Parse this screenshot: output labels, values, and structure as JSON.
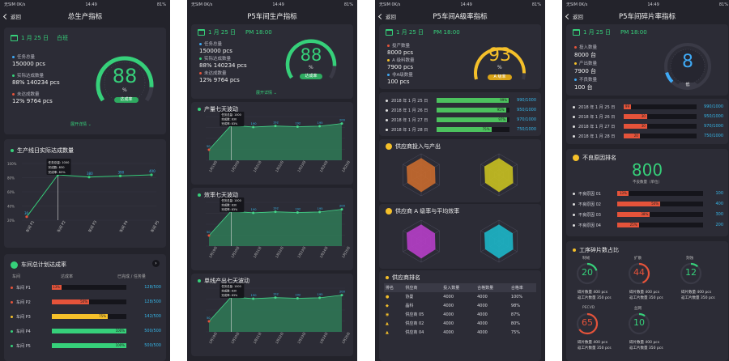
{
  "status": {
    "carrier": "无SIM 0K/s",
    "time": "14:49",
    "battery": "81%"
  },
  "nav": {
    "back": "返回"
  },
  "screen1": {
    "title": "总生产指标",
    "date": "1 月 25 日",
    "shift": "白班",
    "stats": [
      {
        "label": "任务总量",
        "value": "150000 pcs",
        "color": "#3fa9f5"
      },
      {
        "label": "实际达成数量",
        "value": "88%   140234 pcs",
        "color": "#36d07a"
      },
      {
        "label": "未达成数量",
        "value": "12%   9764 pcs",
        "color": "#e5533a"
      }
    ],
    "gauge": {
      "value": "88",
      "unit": "%",
      "badge": "达成率",
      "level": 0.88
    },
    "expand": "展开详情",
    "lineTitle": "生产线日实际达成数量",
    "line": {
      "yticks": [
        "100%",
        "80%",
        "60%",
        "40%",
        "20%"
      ],
      "categories": [
        "车间 P1",
        "车间 P2",
        "车间 P3",
        "车间 P4",
        "车间 P5"
      ],
      "values": [
        30,
        400,
        380,
        390,
        400
      ],
      "labels": [
        "30",
        "",
        "380",
        "390",
        "400"
      ],
      "tooltip": [
        "任务总量: 1000",
        "完成数: 830",
        "完成率: 83%"
      ]
    },
    "planTitle": "车间总计划达成率",
    "planHeader": [
      "车间",
      "达成率",
      "已完成 / 任务量"
    ],
    "plan": [
      {
        "name": "车间 P1",
        "pct": "13%",
        "frac": 0.13,
        "val": "128/500",
        "color": "#e5533a"
      },
      {
        "name": "车间 P2",
        "pct": "50%",
        "frac": 0.5,
        "val": "128/500",
        "color": "#e5533a"
      },
      {
        "name": "车间 P3",
        "pct": "75%",
        "frac": 0.75,
        "val": "142/500",
        "color": "#f5c02a"
      },
      {
        "name": "车间 P4",
        "pct": "100%",
        "frac": 1.0,
        "val": "500/500",
        "color": "#36d07a"
      },
      {
        "name": "车间 P5",
        "pct": "100%",
        "frac": 1.0,
        "val": "500/500",
        "color": "#36d07a"
      }
    ]
  },
  "screen2": {
    "title": "P5车间生产指标",
    "date": "1 月 25 日",
    "time": "PM 18:00",
    "stats": [
      {
        "label": "任务总量",
        "value": "150000 pcs",
        "color": "#3fa9f5"
      },
      {
        "label": "实际达成数量",
        "value": "88%   140234 pcs",
        "color": "#36d07a"
      },
      {
        "label": "未达成数量",
        "value": "12%   9764 pcs",
        "color": "#e5533a"
      }
    ],
    "gauge": {
      "value": "88",
      "unit": "%",
      "badge": "达成率",
      "level": 0.88
    },
    "expand": "展开详情",
    "charts": [
      {
        "title": "产量七天波动",
        "values": [
          60,
          200,
          190,
          196,
          192,
          195,
          210
        ],
        "labels": [
          "50",
          "",
          "190",
          "192",
          "192",
          "195",
          "200"
        ]
      },
      {
        "title": "效率七天波动",
        "values": [
          60,
          200,
          190,
          196,
          192,
          195,
          210
        ],
        "labels": [
          "50",
          "",
          "190",
          "192",
          "192",
          "195",
          "200"
        ]
      },
      {
        "title": "单线产出七天波动",
        "values": [
          60,
          200,
          190,
          196,
          192,
          195,
          210
        ],
        "labels": [
          "50",
          "",
          "190",
          "192",
          "192",
          "195",
          "200"
        ]
      }
    ],
    "days": [
      "1月19日",
      "1月20日",
      "1月21日",
      "1月22日",
      "1月23日",
      "1月24日",
      "1月25日"
    ],
    "tooltip": [
      "任务总量: 1000",
      "完成数: 830",
      "完成率: 83%"
    ]
  },
  "screen3": {
    "title": "P5车间A级率指标",
    "date": "1 月 25 日",
    "time": "PM 18:00",
    "stats": [
      {
        "label": "投产数量",
        "value": "8000 pcs",
        "color": "#e5533a"
      },
      {
        "label": "A 级料数量",
        "value": "7900 pcs",
        "color": "#f5c02a"
      },
      {
        "label": "非A级数量",
        "value": "100 pcs",
        "color": "#3fa9f5"
      }
    ],
    "gauge": {
      "value": "93",
      "unit": "%",
      "badge": "A 级率",
      "level": 0.93
    },
    "bars": [
      {
        "date": "2018 年 1 月 25 日",
        "pct": "99%",
        "frac": 0.99,
        "val": "990/1000"
      },
      {
        "date": "2018 年 1 月 26 日",
        "pct": "95%",
        "frac": 0.95,
        "val": "950/1000"
      },
      {
        "date": "2018 年 1 月 27 日",
        "pct": "97%",
        "frac": 0.97,
        "val": "970/1000"
      },
      {
        "date": "2018 年 1 月 28 日",
        "pct": "75%",
        "frac": 0.75,
        "val": "750/1000"
      }
    ],
    "radar1Title": "供应商投入与产出",
    "radar2Title": "供应商 A 级率与平均效率",
    "rankTitle": "供应商排名",
    "rankHeader": [
      "排名",
      "供应商",
      "投入数量",
      "合格数量",
      "合格率"
    ],
    "rank": [
      {
        "name": "协曼",
        "in": "4000",
        "ok": "4000",
        "rate": "100%"
      },
      {
        "name": "晶科",
        "in": "4000",
        "ok": "4000",
        "rate": "98%"
      },
      {
        "name": "供应商 05",
        "in": "4000",
        "ok": "4000",
        "rate": "87%"
      },
      {
        "name": "供应商 02",
        "in": "4000",
        "ok": "4000",
        "rate": "80%"
      },
      {
        "name": "供应商 04",
        "in": "4000",
        "ok": "4000",
        "rate": "75%"
      }
    ]
  },
  "screen4": {
    "title": "P5车间碎片率指标",
    "date": "1 月 25 日",
    "time": "PM 18:00",
    "stats": [
      {
        "label": "投入数量",
        "value": "8000 台",
        "color": "#e5533a"
      },
      {
        "label": "产出数量",
        "value": "7900 台",
        "color": "#f5c02a"
      },
      {
        "label": "不良数量",
        "value": "100 台",
        "color": "#3fa9f5"
      }
    ],
    "gauge": {
      "value": "8",
      "badge": "低",
      "level": 0.08
    },
    "bars": [
      {
        "date": "2018 年 1 月 25 日",
        "pct": "99",
        "frac": 0.1,
        "val": "990/1000"
      },
      {
        "date": "2018 年 1 月 26 日",
        "pct": "30",
        "frac": 0.32,
        "val": "950/1000"
      },
      {
        "date": "2018 年 1 月 27 日",
        "pct": "30",
        "frac": 0.32,
        "val": "970/1000"
      },
      {
        "date": "2018 年 1 月 28 日",
        "pct": "20",
        "frac": 0.22,
        "val": "750/1000"
      }
    ],
    "reasonTitle": "不良原因排名",
    "bigNumber": "800",
    "bigNumberLabel": "不良数量（单位）",
    "reasons": [
      {
        "name": "不良原因 01",
        "pct": "13%",
        "frac": 0.13,
        "val": "100"
      },
      {
        "name": "不良原因 02",
        "pct": "50%",
        "frac": 0.5,
        "val": "400"
      },
      {
        "name": "不良原因 03",
        "pct": "38%",
        "frac": 0.38,
        "val": "300"
      },
      {
        "name": "不良原因 04",
        "pct": "25%",
        "frac": 0.25,
        "val": "200"
      }
    ],
    "procTitle": "工序碎片数占比",
    "procs": [
      {
        "name": "制绒",
        "value": "20",
        "color": "#36d07a",
        "frac": 0.2,
        "l1": "碎片数量 400 pcs",
        "l2": "返工片数量 350 pcs"
      },
      {
        "name": "扩散",
        "value": "44",
        "color": "#e5533a",
        "frac": 0.44,
        "l1": "碎片数量 400 pcs",
        "l2": "返工片数量 350 pcs"
      },
      {
        "name": "刻蚀",
        "value": "12",
        "color": "#36d07a",
        "frac": 0.12,
        "l1": "碎片数量 400 pcs",
        "l2": "返工片数量 350 pcs"
      },
      {
        "name": "PECVD",
        "value": "65",
        "color": "#e5533a",
        "frac": 0.65,
        "l1": "碎片数量 400 pcs",
        "l2": "返工片数量 350 pcs"
      },
      {
        "name": "丝网",
        "value": "10",
        "color": "#36d07a",
        "frac": 0.1,
        "l1": "碎片数量 400 pcs",
        "l2": "返工片数量 350 pcs"
      }
    ]
  }
}
